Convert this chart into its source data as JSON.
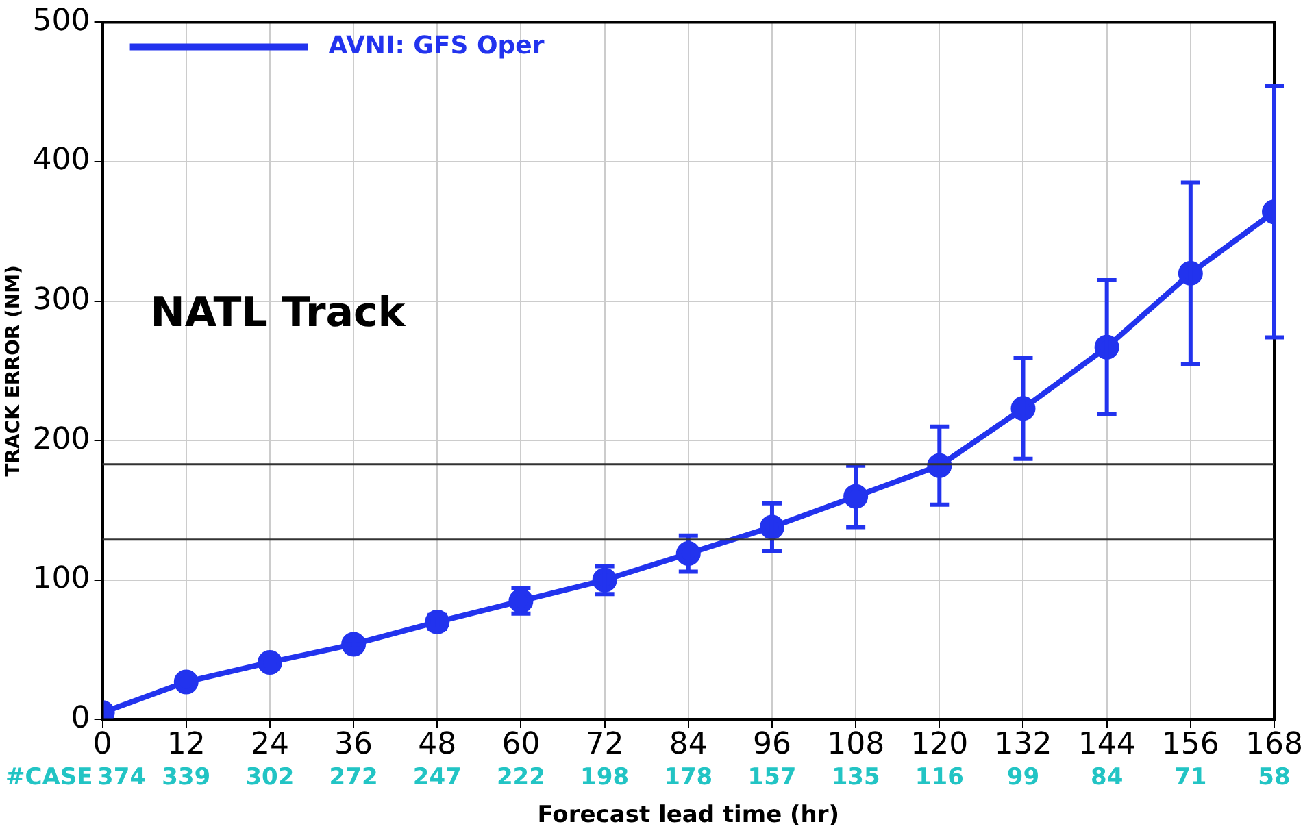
{
  "chart_data": {
    "type": "line",
    "title": "NATL Track",
    "xlabel": "Forecast lead time (hr)",
    "ylabel": "TRACK ERROR (NM)",
    "x": [
      0,
      12,
      24,
      36,
      48,
      60,
      72,
      84,
      96,
      108,
      120,
      132,
      144,
      156,
      168
    ],
    "series": [
      {
        "name": "AVNI: GFS Oper",
        "color": "#2233ee",
        "values": [
          5,
          27,
          41,
          54,
          70,
          85,
          100,
          119,
          138,
          160,
          182,
          223,
          267,
          320,
          364
        ],
        "errors": [
          null,
          null,
          null,
          3,
          5,
          9,
          10,
          13,
          17,
          22,
          28,
          36,
          48,
          65,
          90
        ]
      }
    ],
    "xlim": [
      0,
      168
    ],
    "xticks": [
      0,
      12,
      24,
      36,
      48,
      60,
      72,
      84,
      96,
      108,
      120,
      132,
      144,
      156,
      168
    ],
    "ylim": [
      0,
      500
    ],
    "yticks": [
      0,
      100,
      200,
      300,
      400,
      500
    ],
    "grid": true,
    "legend": "top left",
    "marker": "circle",
    "line_style": "solid",
    "ref_lines": [
      {
        "axis": "y",
        "value": 183,
        "label": null,
        "color": "#333333"
      },
      {
        "axis": "y",
        "value": 129,
        "label": null,
        "color": "#333333"
      }
    ],
    "annotations": [
      "#CASE",
      "374",
      "339",
      "302",
      "272",
      "247",
      "222",
      "198",
      "178",
      "157",
      "135",
      "116",
      "99",
      "84",
      "71",
      "58"
    ]
  }
}
